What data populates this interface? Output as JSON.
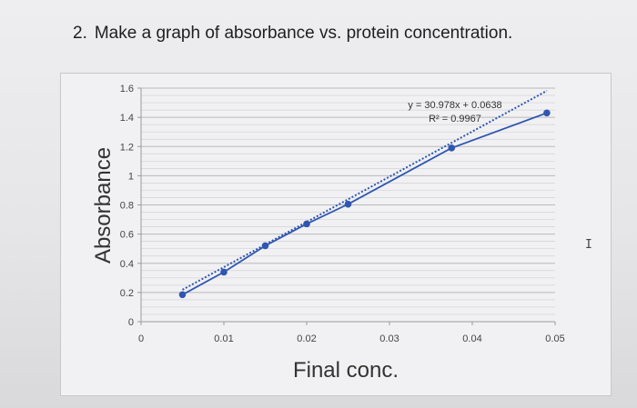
{
  "question": {
    "number": "2.",
    "text": "Make a graph of absorbance vs. protein concentration."
  },
  "chart_data": {
    "type": "scatter",
    "title": "",
    "xlabel": "Final conc.",
    "ylabel": "Absorbance",
    "xlim": [
      0,
      0.05
    ],
    "ylim": [
      0,
      1.6
    ],
    "x_ticks": [
      "0",
      "0.01",
      "0.02",
      "0.03",
      "0.04",
      "0.05"
    ],
    "y_ticks": [
      "0",
      "0.2",
      "0.4",
      "0.6",
      "0.8",
      "1",
      "1.2",
      "1.4",
      "1.6"
    ],
    "grid": "horizontal",
    "series": [
      {
        "x": [
          0.005,
          0.01,
          0.015,
          0.02,
          0.025,
          0.0375,
          0.049
        ],
        "y": [
          0.185,
          0.34,
          0.52,
          0.67,
          0.805,
          1.19,
          1.43
        ],
        "color": "#2f56b0"
      }
    ],
    "trendline": {
      "equation": "y = 30.978x + 0.0638",
      "r2": "R² = 0.9967",
      "slope": 30.978,
      "intercept": 0.0638,
      "color": "#2f56b0"
    }
  }
}
